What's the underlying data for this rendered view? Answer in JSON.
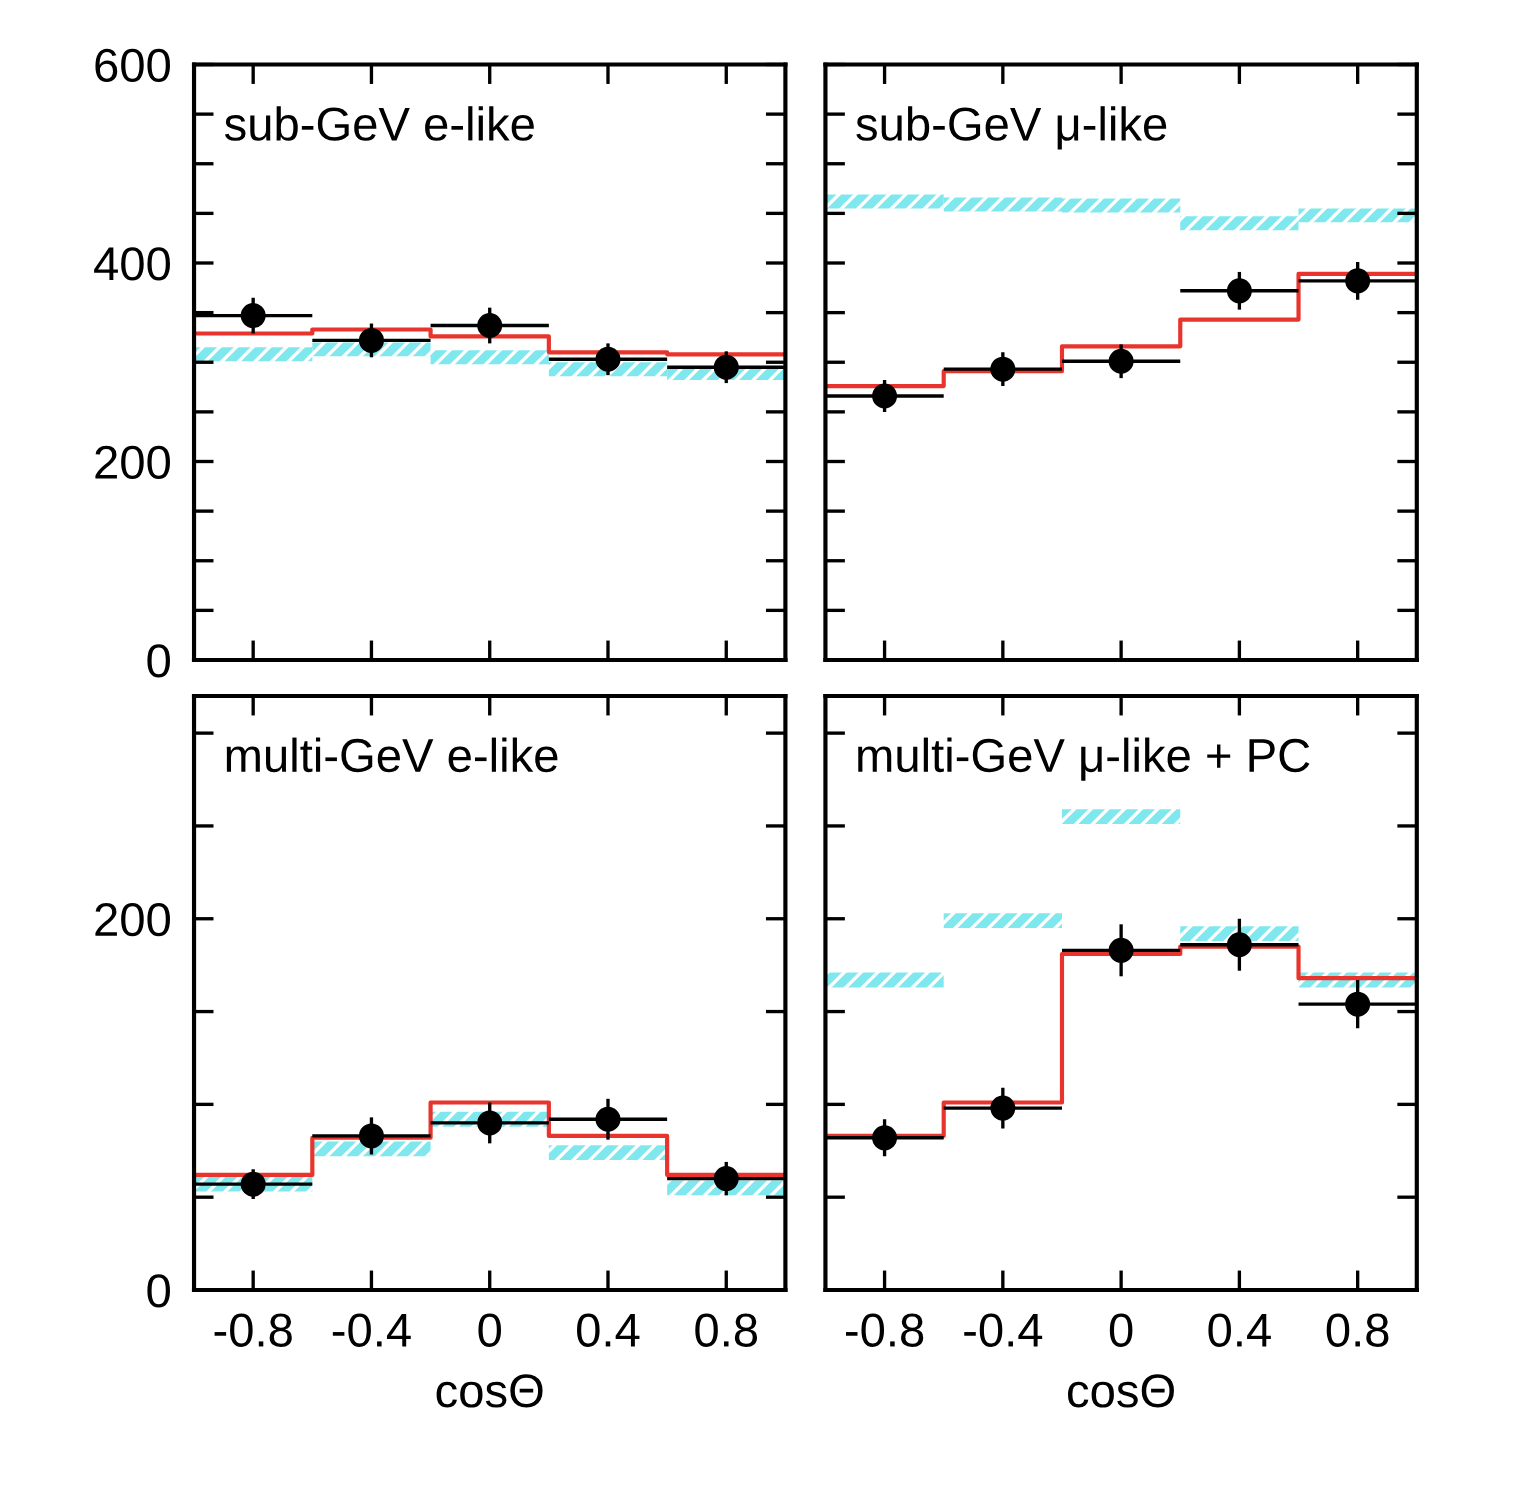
{
  "chart_data": [
    {
      "type": "step",
      "title": "sub-GeV e-like",
      "x": [
        -0.8,
        -0.4,
        0,
        0.4,
        0.8
      ],
      "xlim": [
        -1,
        1
      ],
      "xticks": [
        -0.8,
        -0.4,
        0,
        0.4,
        0.8
      ],
      "ylim": [
        0,
        600
      ],
      "yticks": [
        0,
        {
          "value": 50,
          "label": null
        },
        {
          "value": 100,
          "label": null
        },
        {
          "value": 150,
          "label": null
        },
        200,
        {
          "value": 250,
          "label": null
        },
        {
          "value": 300,
          "label": null
        },
        {
          "value": 350,
          "label": null
        },
        400,
        {
          "value": 450,
          "label": null
        },
        {
          "value": 500,
          "label": null
        },
        {
          "value": 550,
          "label": null
        },
        600
      ],
      "tick_labels": "y",
      "grid": false,
      "legend": false,
      "series": [
        {
          "type": "bar",
          "color": "#7fe8ee",
          "base": [
            301,
            306,
            298,
            286,
            282
          ],
          "values": [
            14,
            14,
            14,
            14,
            14
          ]
        },
        {
          "type": "step",
          "color": "#e8342c",
          "x": [
            -1,
            -0.6,
            -0.2,
            0.2,
            0.6,
            1
          ],
          "values": [
            329,
            333,
            326,
            310,
            308,
            308
          ]
        },
        {
          "type": "scatter",
          "color": "#000000",
          "marker": "circle",
          "values": [
            347,
            322,
            337,
            303,
            295
          ],
          "errors": [
            18,
            17,
            18,
            16,
            16
          ],
          "xerrors": [
            0.2,
            0.2,
            0.2,
            0.2,
            0.2
          ]
        }
      ]
    },
    {
      "type": "step",
      "title": "sub-GeV μ-like",
      "x": [
        -0.8,
        -0.4,
        0,
        0.4,
        0.8
      ],
      "xlim": [
        -1,
        1
      ],
      "xticks": [
        -0.8,
        -0.4,
        0,
        0.4,
        0.8
      ],
      "ylim": [
        0,
        600
      ],
      "yticks": [
        0,
        {
          "value": 50,
          "label": null
        },
        {
          "value": 100,
          "label": null
        },
        {
          "value": 150,
          "label": null
        },
        200,
        {
          "value": 250,
          "label": null
        },
        {
          "value": 300,
          "label": null
        },
        {
          "value": 350,
          "label": null
        },
        400,
        {
          "value": 450,
          "label": null
        },
        {
          "value": 500,
          "label": null
        },
        {
          "value": 550,
          "label": null
        },
        600
      ],
      "tick_labels": false,
      "grid": false,
      "legend": false,
      "series": [
        {
          "type": "bar",
          "color": "#7fe8ee",
          "base": [
            455,
            452,
            451,
            433,
            441
          ],
          "values": [
            14,
            14,
            14,
            14,
            14
          ]
        },
        {
          "type": "step",
          "color": "#e8342c",
          "x": [
            -1,
            -0.6,
            -0.2,
            0.2,
            0.6,
            1
          ],
          "values": [
            276,
            291,
            316,
            343,
            389,
            389
          ]
        },
        {
          "type": "scatter",
          "color": "#000000",
          "marker": "circle",
          "values": [
            266,
            293,
            301,
            372,
            382
          ],
          "errors": [
            16,
            17,
            17,
            19,
            19
          ],
          "xerrors": [
            0.2,
            0.2,
            0.2,
            0.2,
            0.2
          ]
        }
      ]
    },
    {
      "type": "step",
      "title": "multi-GeV e-like",
      "xlabel": "cosΘ",
      "x": [
        -0.8,
        -0.4,
        0,
        0.4,
        0.8
      ],
      "xlim": [
        -1,
        1
      ],
      "xticks": [
        -0.8,
        -0.4,
        0,
        0.4,
        0.8
      ],
      "ylim": [
        0,
        320
      ],
      "yticks": [
        0,
        {
          "value": 50,
          "label": null
        },
        {
          "value": 100,
          "label": null
        },
        {
          "value": 150,
          "label": null
        },
        200,
        {
          "value": 250,
          "label": null
        },
        {
          "value": 300,
          "label": null
        }
      ],
      "grid": false,
      "legend": false,
      "series": [
        {
          "type": "bar",
          "color": "#7fe8ee",
          "base": [
            53,
            72,
            88,
            70,
            51
          ],
          "values": [
            8,
            8,
            8,
            8,
            8
          ]
        },
        {
          "type": "step",
          "color": "#e8342c",
          "x": [
            -1,
            -0.6,
            -0.2,
            0.2,
            0.6,
            1
          ],
          "values": [
            62,
            82,
            101,
            83,
            62,
            62
          ]
        },
        {
          "type": "scatter",
          "color": "#000000",
          "marker": "circle",
          "values": [
            57,
            83,
            90,
            92,
            60
          ],
          "errors": [
            8,
            10,
            11,
            11,
            9
          ],
          "xerrors": [
            0.2,
            0.2,
            0.2,
            0.2,
            0.2
          ]
        }
      ]
    },
    {
      "type": "step",
      "title": "multi-GeV μ-like + PC",
      "xlabel": "cosΘ",
      "x": [
        -0.8,
        -0.4,
        0,
        0.4,
        0.8
      ],
      "xlim": [
        -1,
        1
      ],
      "xticks": [
        -0.8,
        -0.4,
        0,
        0.4,
        0.8
      ],
      "ylim": [
        0,
        320
      ],
      "yticks": [
        0,
        {
          "value": 50,
          "label": null
        },
        {
          "value": 100,
          "label": null
        },
        {
          "value": 150,
          "label": null
        },
        200,
        {
          "value": 250,
          "label": null
        },
        {
          "value": 300,
          "label": null
        }
      ],
      "tick_labels": "x",
      "grid": false,
      "legend": false,
      "series": [
        {
          "type": "bar",
          "color": "#7fe8ee",
          "base": [
            163,
            195,
            251,
            188,
            163
          ],
          "values": [
            8,
            8,
            8,
            8,
            8
          ]
        },
        {
          "type": "step",
          "color": "#e8342c",
          "x": [
            -1,
            -0.6,
            -0.2,
            0.2,
            0.6,
            1
          ],
          "values": [
            83,
            101,
            181,
            185,
            168,
            168
          ]
        },
        {
          "type": "scatter",
          "color": "#000000",
          "marker": "circle",
          "values": [
            82,
            98,
            183,
            186,
            154
          ],
          "errors": [
            10,
            11,
            14,
            14,
            13
          ],
          "xerrors": [
            0.2,
            0.2,
            0.2,
            0.2,
            0.2
          ]
        }
      ]
    }
  ]
}
